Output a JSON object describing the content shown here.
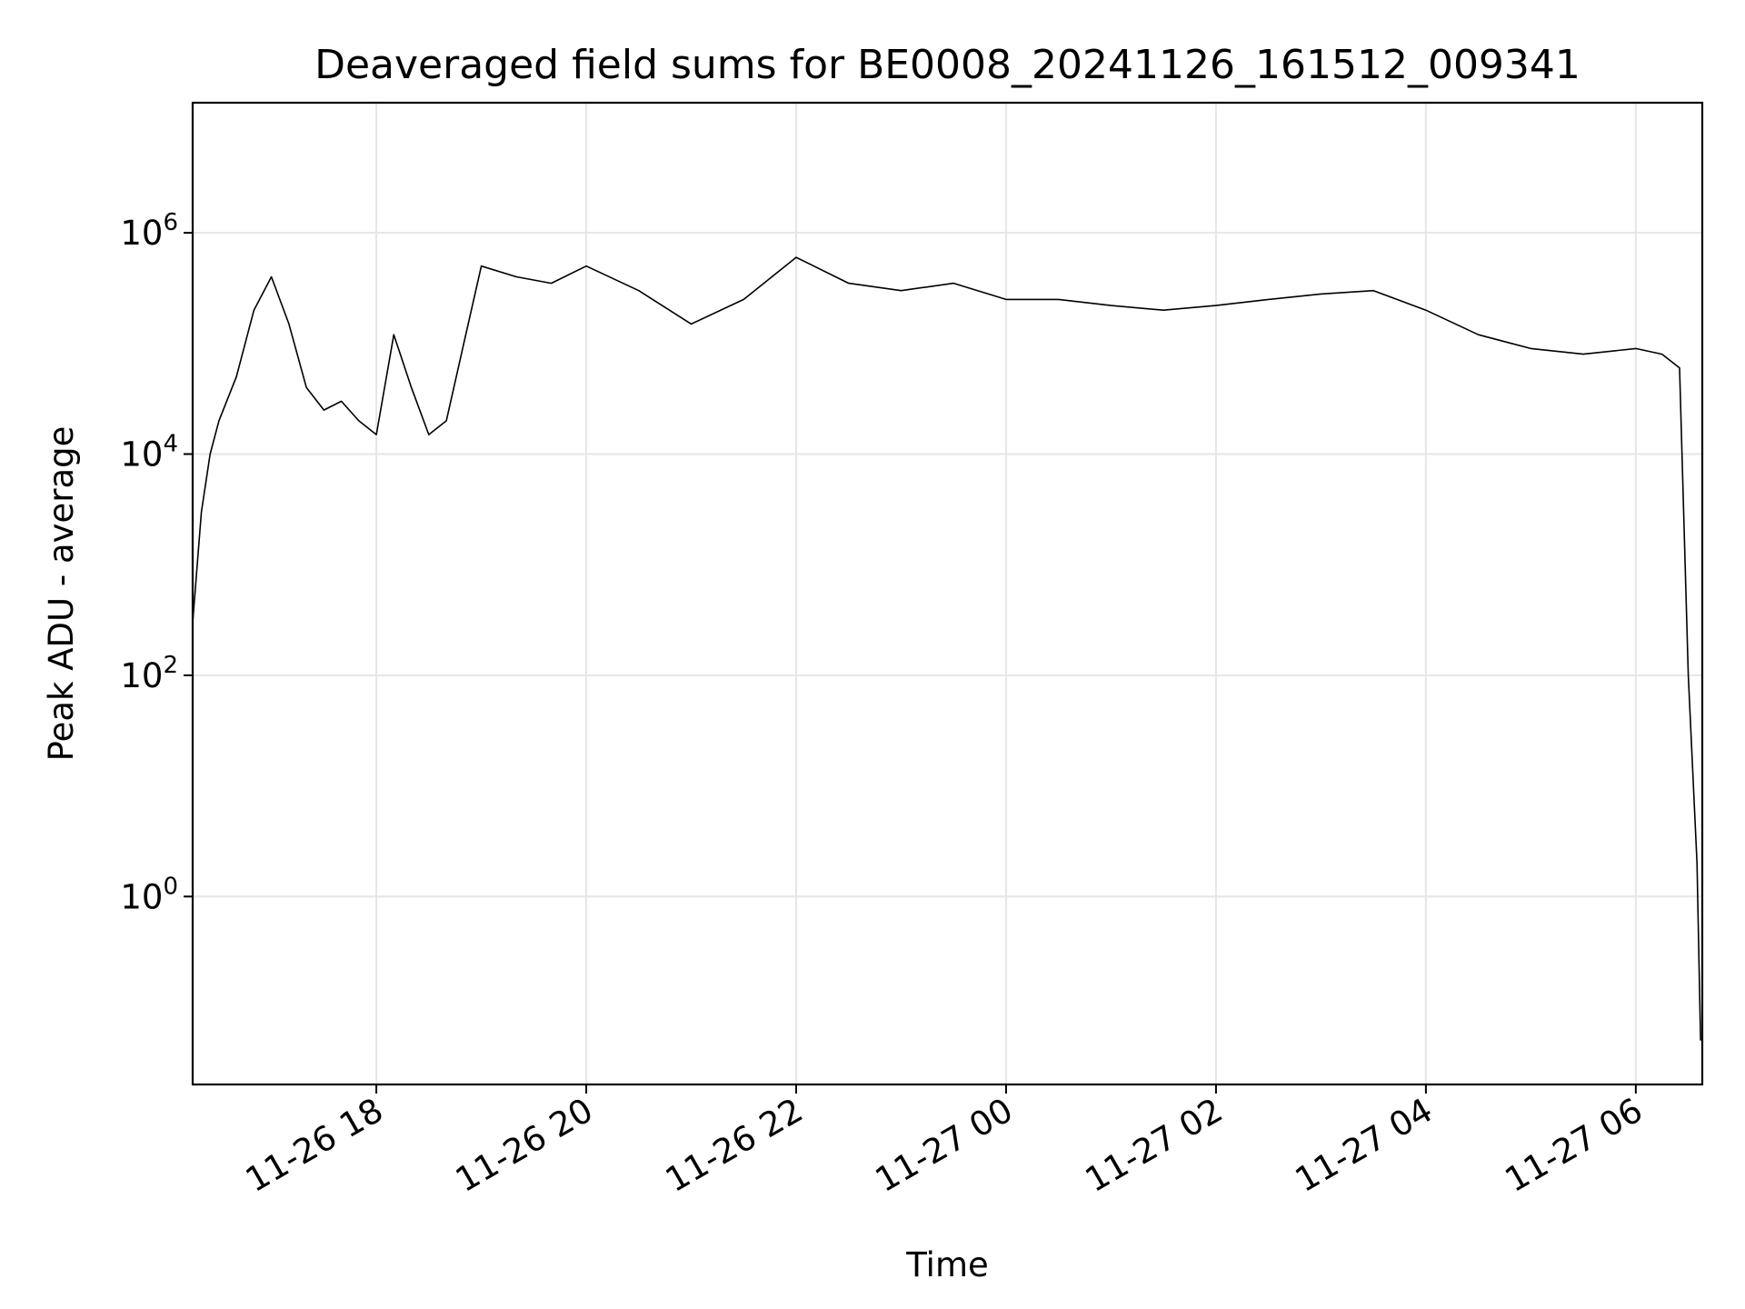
{
  "chart_data": {
    "type": "line",
    "title": "Deaveraged field sums for BE0008_20241126_161512_009341",
    "xlabel": "Time",
    "ylabel": "Peak ADU - average",
    "y_scale": "log",
    "grid": true,
    "line_color": "#000000",
    "grid_color": "#e6e6e6",
    "xlim": [
      "2024-11-26 16:15",
      "2024-11-27 06:38"
    ],
    "ylim": [
      0.02,
      15000000
    ],
    "x_ticks": [
      {
        "value": "2024-11-26 18:00",
        "label": "11-26 18"
      },
      {
        "value": "2024-11-26 20:00",
        "label": "11-26 20"
      },
      {
        "value": "2024-11-26 22:00",
        "label": "11-26 22"
      },
      {
        "value": "2024-11-27 00:00",
        "label": "11-27 00"
      },
      {
        "value": "2024-11-27 02:00",
        "label": "11-27 02"
      },
      {
        "value": "2024-11-27 04:00",
        "label": "11-27 04"
      },
      {
        "value": "2024-11-27 06:00",
        "label": "11-27 06"
      }
    ],
    "y_ticks": [
      {
        "value": 1,
        "base": "10",
        "exp": "0"
      },
      {
        "value": 100,
        "base": "10",
        "exp": "2"
      },
      {
        "value": 10000,
        "base": "10",
        "exp": "4"
      },
      {
        "value": 1000000,
        "base": "10",
        "exp": "6"
      }
    ],
    "series": [
      {
        "x": [
          "2024-11-26 16:15",
          "2024-11-26 16:20",
          "2024-11-26 16:25",
          "2024-11-26 16:30",
          "2024-11-26 16:40",
          "2024-11-26 16:50",
          "2024-11-26 17:00",
          "2024-11-26 17:10",
          "2024-11-26 17:20",
          "2024-11-26 17:30",
          "2024-11-26 17:40",
          "2024-11-26 17:50",
          "2024-11-26 18:00",
          "2024-11-26 18:10",
          "2024-11-26 18:20",
          "2024-11-26 18:30",
          "2024-11-26 18:40",
          "2024-11-26 18:50",
          "2024-11-26 19:00",
          "2024-11-26 19:20",
          "2024-11-26 19:40",
          "2024-11-26 20:00",
          "2024-11-26 20:30",
          "2024-11-26 21:00",
          "2024-11-26 21:30",
          "2024-11-26 22:00",
          "2024-11-26 22:30",
          "2024-11-26 23:00",
          "2024-11-26 23:30",
          "2024-11-27 00:00",
          "2024-11-27 00:30",
          "2024-11-27 01:00",
          "2024-11-27 01:30",
          "2024-11-27 02:00",
          "2024-11-27 02:30",
          "2024-11-27 03:00",
          "2024-11-27 03:30",
          "2024-11-27 04:00",
          "2024-11-27 04:30",
          "2024-11-27 05:00",
          "2024-11-27 05:30",
          "2024-11-27 06:00",
          "2024-11-27 06:15",
          "2024-11-27 06:25",
          "2024-11-27 06:30",
          "2024-11-27 06:35",
          "2024-11-27 06:37"
        ],
        "y": [
          300,
          3000,
          10000,
          20000,
          50000,
          200000,
          400000,
          150000,
          40000,
          25000,
          30000,
          20000,
          15000,
          120000,
          40000,
          15000,
          20000,
          100000,
          500000,
          400000,
          350000,
          500000,
          300000,
          150000,
          250000,
          600000,
          350000,
          300000,
          350000,
          250000,
          250000,
          220000,
          200000,
          220000,
          250000,
          280000,
          300000,
          200000,
          120000,
          90000,
          80000,
          90000,
          80000,
          60000,
          100,
          2,
          0.05
        ]
      }
    ]
  }
}
